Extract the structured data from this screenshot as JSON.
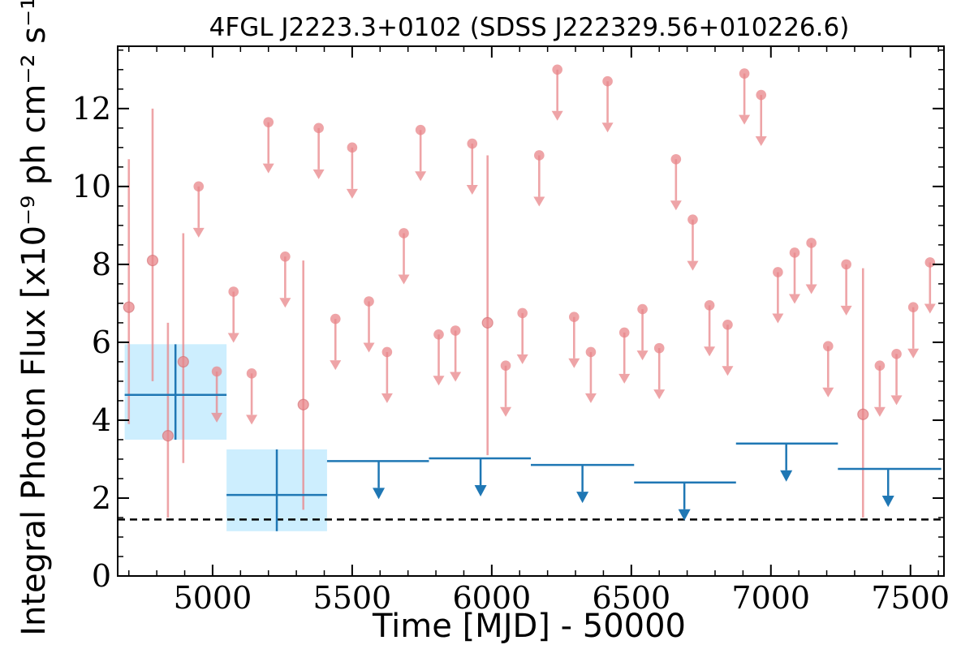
{
  "chart_data": {
    "type": "scatter",
    "title": "4FGL J2223.3+0102 (SDSS J222329.56+010226.6)",
    "xlabel": "Time [MJD] - 50000",
    "ylabel": "Integral Photon Flux [x10⁻⁹ ph cm⁻² s⁻¹]",
    "xlim": [
      4660,
      7620
    ],
    "ylim": [
      0,
      13.6
    ],
    "x_ticks": [
      5000,
      5500,
      6000,
      6500,
      7000,
      7500
    ],
    "x_tick_labels": [
      "5000",
      "5500",
      "6000",
      "6500",
      "7000",
      "7500"
    ],
    "y_ticks": [
      0,
      2,
      4,
      6,
      8,
      10,
      12
    ],
    "y_tick_labels": [
      "0",
      "2",
      "4",
      "6",
      "8",
      "10",
      "12"
    ],
    "colors": {
      "short_bins": "#e8868a",
      "long_bins": "#1f77b4",
      "error_box": "#cdeefe",
      "reference_line": "#000000"
    },
    "series": [
      {
        "marker": "circle",
        "kind": "detections",
        "points": [
          {
            "x": 4700,
            "y": 6.9,
            "ylo": 3.9,
            "yhi": 10.7
          },
          {
            "x": 4785,
            "y": 8.1,
            "ylo": 5.0,
            "yhi": 12.0
          },
          {
            "x": 4840,
            "y": 3.6,
            "ylo": 1.5,
            "yhi": 6.5
          },
          {
            "x": 4895,
            "y": 5.5,
            "ylo": 2.9,
            "yhi": 8.8
          },
          {
            "x": 5325,
            "y": 4.4,
            "ylo": 1.7,
            "yhi": 8.1
          },
          {
            "x": 5985,
            "y": 6.5,
            "ylo": 3.1,
            "yhi": 10.8
          },
          {
            "x": 7330,
            "y": 4.15,
            "ylo": 1.5,
            "yhi": 7.9
          }
        ]
      },
      {
        "marker": "circle",
        "kind": "upper_limits",
        "points": [
          {
            "x": 4950,
            "y": 10.0
          },
          {
            "x": 5015,
            "y": 5.25
          },
          {
            "x": 5075,
            "y": 7.3
          },
          {
            "x": 5140,
            "y": 5.2
          },
          {
            "x": 5200,
            "y": 11.65
          },
          {
            "x": 5260,
            "y": 8.2
          },
          {
            "x": 5380,
            "y": 11.5
          },
          {
            "x": 5440,
            "y": 6.6
          },
          {
            "x": 5500,
            "y": 11.0
          },
          {
            "x": 5560,
            "y": 7.05
          },
          {
            "x": 5625,
            "y": 5.75
          },
          {
            "x": 5685,
            "y": 8.8
          },
          {
            "x": 5745,
            "y": 11.45
          },
          {
            "x": 5810,
            "y": 6.2
          },
          {
            "x": 5870,
            "y": 6.3
          },
          {
            "x": 5930,
            "y": 11.1
          },
          {
            "x": 6050,
            "y": 5.4
          },
          {
            "x": 6110,
            "y": 6.75
          },
          {
            "x": 6170,
            "y": 10.8
          },
          {
            "x": 6235,
            "y": 13.0
          },
          {
            "x": 6295,
            "y": 6.65
          },
          {
            "x": 6355,
            "y": 5.75
          },
          {
            "x": 6415,
            "y": 12.7
          },
          {
            "x": 6475,
            "y": 6.25
          },
          {
            "x": 6540,
            "y": 6.85
          },
          {
            "x": 6600,
            "y": 5.85
          },
          {
            "x": 6660,
            "y": 10.7
          },
          {
            "x": 6720,
            "y": 9.15
          },
          {
            "x": 6780,
            "y": 6.95
          },
          {
            "x": 6845,
            "y": 6.45
          },
          {
            "x": 6905,
            "y": 12.9
          },
          {
            "x": 6965,
            "y": 12.35
          },
          {
            "x": 7025,
            "y": 7.8
          },
          {
            "x": 7085,
            "y": 8.3
          },
          {
            "x": 7145,
            "y": 8.55
          },
          {
            "x": 7205,
            "y": 5.9
          },
          {
            "x": 7270,
            "y": 8.0
          },
          {
            "x": 7390,
            "y": 5.4
          },
          {
            "x": 7450,
            "y": 5.7
          },
          {
            "x": 7510,
            "y": 6.9
          },
          {
            "x": 7570,
            "y": 8.05
          }
        ]
      },
      {
        "marker": "crosshair",
        "kind": "detections",
        "points": [
          {
            "x": 4867,
            "xlo": 4685,
            "xhi": 5050,
            "y": 4.65,
            "ylo": 3.5,
            "yhi": 5.95
          },
          {
            "x": 5230,
            "xlo": 5050,
            "xhi": 5410,
            "y": 2.08,
            "ylo": 1.15,
            "yhi": 3.25
          }
        ]
      },
      {
        "marker": "bar",
        "kind": "upper_limits",
        "points": [
          {
            "x": 5595,
            "xlo": 5410,
            "xhi": 5775,
            "y": 2.95
          },
          {
            "x": 5960,
            "xlo": 5775,
            "xhi": 6140,
            "y": 3.02
          },
          {
            "x": 6325,
            "xlo": 6140,
            "xhi": 6510,
            "y": 2.85
          },
          {
            "x": 6690,
            "xlo": 6510,
            "xhi": 6875,
            "y": 2.4
          },
          {
            "x": 7055,
            "xlo": 6875,
            "xhi": 7240,
            "y": 3.4
          },
          {
            "x": 7420,
            "xlo": 7240,
            "xhi": 7610,
            "y": 2.75
          }
        ]
      }
    ],
    "reference_line": {
      "y": 1.45,
      "style": "dashed"
    }
  }
}
